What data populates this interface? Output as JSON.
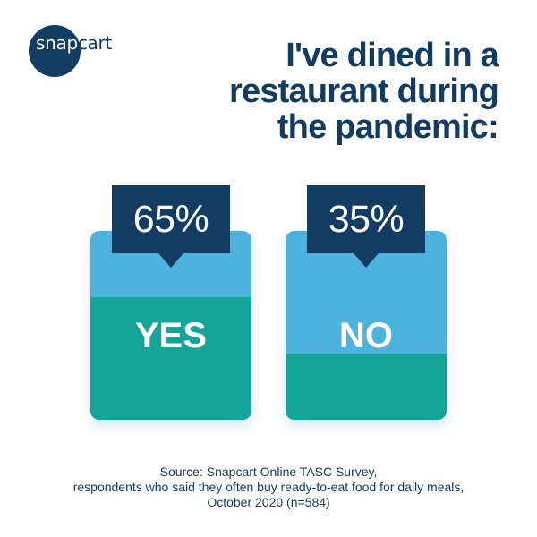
{
  "brand": {
    "logo_text_prefix": "snap",
    "logo_text_suffix": "cart",
    "logo_color": "#123c62"
  },
  "title": "I've dined in a restaurant during the pandemic:",
  "colors": {
    "navy": "#123c62",
    "light_blue": "#4eb2df",
    "teal": "#13a597"
  },
  "chart_data": {
    "type": "bar",
    "title": "I've dined in a restaurant during the pandemic:",
    "categories": [
      "YES",
      "NO"
    ],
    "values": [
      65,
      35
    ],
    "value_labels": [
      "65%",
      "35%"
    ],
    "unit": "%",
    "ylim": [
      0,
      100
    ]
  },
  "source": {
    "line1": "Source: Snapcart Online TASC Survey,",
    "line2": "respondents who said they often buy ready-to-eat food for daily meals,",
    "line3": "October 2020 (n=584)"
  }
}
